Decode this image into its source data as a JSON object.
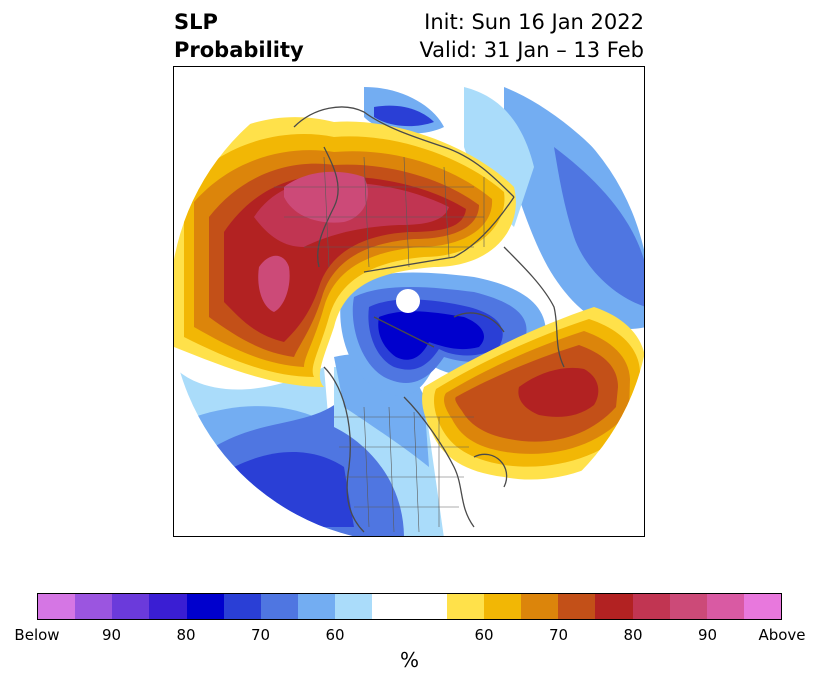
{
  "title": {
    "left_line1": "SLP",
    "left_line2": "Probability",
    "right_line1": "Init: Sun 16 Jan 2022",
    "right_line2": "Valid: 31 Jan – 13 Feb"
  },
  "map": {
    "projection": "north-polar-stereographic",
    "description_regions": [
      {
        "name": "below-normal-arctic",
        "category": "Below",
        "color": "#0000cd"
      },
      {
        "name": "above-normal-siberia-europe",
        "category": "Above",
        "color": "#d54e88"
      },
      {
        "name": "above-normal-north-pacific",
        "category": "80",
        "color": "#b22222"
      },
      {
        "name": "below-normal-north-america",
        "category": "70",
        "color": "#2a3fd6"
      }
    ]
  },
  "colorbar": {
    "colors": [
      "#d576e4",
      "#9b55e0",
      "#6b3adb",
      "#3a1ed3",
      "#0000cd",
      "#2a3fd6",
      "#4f76e1",
      "#73adf2",
      "#aadcfa",
      "#ffffff",
      "#ffffff",
      "#ffe14a",
      "#f2b705",
      "#dc850b",
      "#c35018",
      "#b22222",
      "#c13552",
      "#cc4a78",
      "#d95aa3",
      "#e878dd"
    ],
    "tick_labels": [
      "Below",
      "90",
      "80",
      "70",
      "60",
      "",
      "60",
      "70",
      "80",
      "90",
      "Above"
    ],
    "unit_label": "%"
  }
}
